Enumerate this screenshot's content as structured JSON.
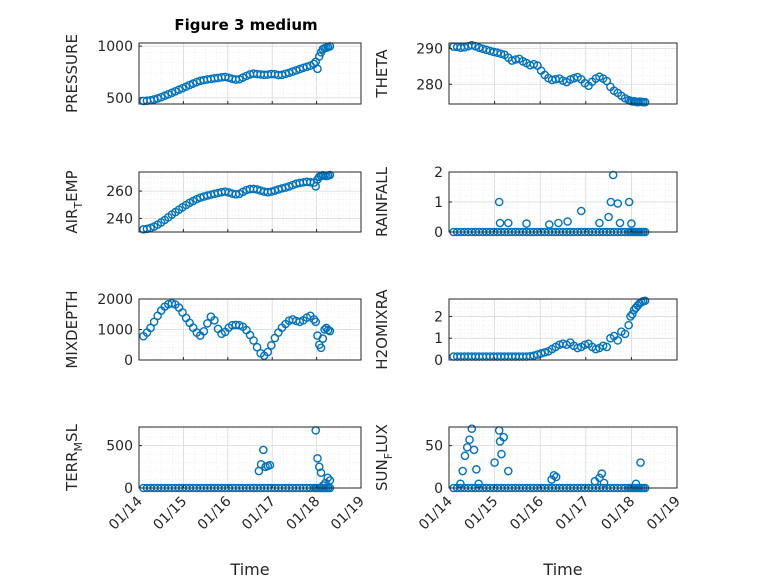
{
  "figure": {
    "title": "Figure 3 medium",
    "marker_color": "#0072bd"
  },
  "chart_data": [
    {
      "type": "scatter",
      "ylabel": "PRESSURE",
      "yticks": [
        500,
        1000
      ],
      "ylim": [
        440,
        1030
      ],
      "xlim": [
        0,
        5
      ],
      "xticks": [
        0,
        1,
        2,
        3,
        4,
        5
      ],
      "xticklabels": [
        "01/14",
        "01/15",
        "01/16",
        "01/17",
        "01/18",
        "01/19"
      ],
      "xlabel": "",
      "x": [
        0.1,
        0.18,
        0.26,
        0.34,
        0.42,
        0.5,
        0.58,
        0.66,
        0.74,
        0.82,
        0.9,
        0.98,
        1.06,
        1.14,
        1.22,
        1.3,
        1.38,
        1.46,
        1.54,
        1.62,
        1.7,
        1.78,
        1.86,
        1.94,
        2.02,
        2.1,
        2.18,
        2.26,
        2.34,
        2.42,
        2.5,
        2.58,
        2.66,
        2.74,
        2.82,
        2.9,
        2.98,
        3.06,
        3.14,
        3.22,
        3.3,
        3.38,
        3.46,
        3.54,
        3.62,
        3.7,
        3.78,
        3.86,
        3.94,
        3.98,
        4.02,
        4.06,
        4.1,
        4.14,
        4.18,
        4.22,
        4.26,
        4.3
      ],
      "y": [
        470,
        472,
        476,
        484,
        494,
        506,
        520,
        534,
        548,
        563,
        578,
        593,
        608,
        624,
        638,
        652,
        664,
        672,
        678,
        682,
        688,
        692,
        698,
        702,
        694,
        684,
        676,
        680,
        696,
        712,
        726,
        734,
        730,
        726,
        722,
        724,
        730,
        728,
        720,
        722,
        732,
        742,
        754,
        766,
        778,
        790,
        800,
        812,
        828,
        848,
        780,
        900,
        940,
        970,
        980,
        985,
        990,
        998
      ]
    },
    {
      "type": "scatter",
      "ylabel": "THETA",
      "yticks": [
        280,
        290
      ],
      "ylim": [
        274.5,
        291.5
      ],
      "xlim": [
        0,
        5
      ],
      "xticks": [
        0,
        1,
        2,
        3,
        4,
        5
      ],
      "xticklabels": [
        "01/14",
        "01/15",
        "01/16",
        "01/17",
        "01/18",
        "01/19"
      ],
      "xlabel": "",
      "x": [
        0.1,
        0.18,
        0.26,
        0.34,
        0.42,
        0.5,
        0.58,
        0.66,
        0.74,
        0.82,
        0.9,
        0.98,
        1.06,
        1.14,
        1.22,
        1.3,
        1.38,
        1.46,
        1.54,
        1.62,
        1.7,
        1.78,
        1.86,
        1.94,
        2.02,
        2.1,
        2.18,
        2.26,
        2.34,
        2.42,
        2.5,
        2.58,
        2.66,
        2.74,
        2.82,
        2.9,
        2.98,
        3.06,
        3.14,
        3.22,
        3.3,
        3.38,
        3.46,
        3.54,
        3.62,
        3.7,
        3.78,
        3.86,
        3.94,
        3.98,
        4.02,
        4.06,
        4.1,
        4.14,
        4.18,
        4.22,
        4.26,
        4.3
      ],
      "y": [
        290.5,
        290.4,
        290.2,
        290.3,
        290.6,
        290.9,
        290.6,
        290.2,
        289.9,
        289.6,
        289.3,
        289.0,
        288.8,
        288.5,
        288.2,
        287.4,
        286.6,
        286.9,
        287.1,
        286.4,
        285.9,
        285.3,
        285.6,
        285.2,
        283.8,
        282.6,
        281.7,
        281.2,
        281.4,
        281.6,
        281.0,
        280.6,
        281.3,
        281.7,
        282.0,
        281.4,
        280.3,
        279.6,
        280.7,
        281.6,
        282.1,
        281.6,
        280.9,
        279.3,
        278.2,
        277.6,
        276.8,
        276.1,
        275.6,
        275.4,
        275.2,
        275.3,
        275.1,
        275.0,
        275.2,
        275.1,
        275.0,
        275.0
      ]
    },
    {
      "type": "scatter",
      "ylabel": "AIR_TEMP",
      "yticks": [
        240,
        260
      ],
      "ylim": [
        230,
        274
      ],
      "xlim": [
        0,
        5
      ],
      "xticks": [
        0,
        1,
        2,
        3,
        4,
        5
      ],
      "xticklabels": [
        "01/14",
        "01/15",
        "01/16",
        "01/17",
        "01/18",
        "01/19"
      ],
      "xlabel": "",
      "x": [
        0.1,
        0.18,
        0.26,
        0.34,
        0.42,
        0.5,
        0.58,
        0.66,
        0.74,
        0.82,
        0.9,
        0.98,
        1.06,
        1.14,
        1.22,
        1.3,
        1.38,
        1.46,
        1.54,
        1.62,
        1.7,
        1.78,
        1.86,
        1.94,
        2.02,
        2.1,
        2.18,
        2.26,
        2.34,
        2.42,
        2.5,
        2.58,
        2.66,
        2.74,
        2.82,
        2.9,
        2.98,
        3.06,
        3.14,
        3.22,
        3.3,
        3.38,
        3.46,
        3.54,
        3.62,
        3.7,
        3.78,
        3.86,
        3.94,
        3.98,
        4.02,
        4.06,
        4.1,
        4.14,
        4.18,
        4.22,
        4.26,
        4.3
      ],
      "y": [
        232,
        232.3,
        233,
        234,
        235.4,
        237,
        238.8,
        240.8,
        242.8,
        244.6,
        246.4,
        248.1,
        249.8,
        251.4,
        252.8,
        254.1,
        255.2,
        256.0,
        256.7,
        257.4,
        258.0,
        258.6,
        259.2,
        259.6,
        259.0,
        258.2,
        257.6,
        258.0,
        259.5,
        260.8,
        261.5,
        261.6,
        261.2,
        260.4,
        259.6,
        259.2,
        259.6,
        260.4,
        261.2,
        262.0,
        262.6,
        263.4,
        264.4,
        265.4,
        266.0,
        266.4,
        266.8,
        266.5,
        266.2,
        263.5,
        268.5,
        270.5,
        271.2,
        271.6,
        271.3,
        271.0,
        271.4,
        271.8
      ]
    },
    {
      "type": "scatter",
      "ylabel": "RAINFALL",
      "yticks": [
        0,
        1,
        2
      ],
      "ylim": [
        0,
        2
      ],
      "xlim": [
        0,
        5
      ],
      "xticks": [
        0,
        1,
        2,
        3,
        4,
        5
      ],
      "xticklabels": [
        "01/14",
        "01/15",
        "01/16",
        "01/17",
        "01/18",
        "01/19"
      ],
      "xlabel": "",
      "x": [
        0.1,
        0.18,
        0.26,
        0.34,
        0.42,
        0.5,
        0.58,
        0.66,
        0.74,
        0.82,
        0.9,
        0.98,
        1.06,
        1.14,
        1.22,
        1.3,
        1.38,
        1.46,
        1.54,
        1.62,
        1.7,
        1.78,
        1.86,
        1.94,
        2.02,
        2.1,
        2.18,
        2.26,
        2.34,
        2.42,
        2.5,
        2.58,
        2.66,
        2.74,
        2.82,
        2.9,
        2.98,
        3.06,
        3.14,
        3.22,
        3.3,
        3.38,
        3.46,
        3.54,
        3.62,
        3.7,
        3.78,
        3.86,
        3.94,
        3.98,
        4.02,
        4.06,
        4.1,
        4.14,
        4.18,
        4.22,
        4.26,
        4.3,
        1.1,
        1.12,
        1.3,
        1.7,
        2.2,
        2.4,
        2.6,
        2.9,
        3.3,
        3.5,
        3.55,
        3.6,
        3.7,
        3.75,
        3.95,
        4.0
      ],
      "y": [
        0,
        0,
        0,
        0,
        0,
        0,
        0,
        0,
        0,
        0,
        0,
        0,
        0,
        0,
        0,
        0,
        0,
        0,
        0,
        0,
        0,
        0,
        0,
        0,
        0,
        0,
        0,
        0,
        0,
        0,
        0,
        0,
        0,
        0,
        0,
        0,
        0,
        0,
        0,
        0,
        0,
        0,
        0,
        0,
        0,
        0,
        0,
        0,
        0,
        0,
        0,
        0,
        0,
        0,
        0,
        0,
        0,
        0,
        1.0,
        0.3,
        0.3,
        0.28,
        0.25,
        0.3,
        0.35,
        0.7,
        0.3,
        0.5,
        1.0,
        1.9,
        0.95,
        0.3,
        1.0,
        0.28
      ]
    },
    {
      "type": "scatter",
      "ylabel": "MIXDEPTH",
      "yticks": [
        0,
        1000,
        2000
      ],
      "ylim": [
        0,
        2000
      ],
      "xlim": [
        0,
        5
      ],
      "xticks": [
        0,
        1,
        2,
        3,
        4,
        5
      ],
      "xticklabels": [
        "01/14",
        "01/15",
        "01/16",
        "01/17",
        "01/18",
        "01/19"
      ],
      "xlabel": "",
      "x": [
        0.1,
        0.18,
        0.26,
        0.34,
        0.42,
        0.5,
        0.58,
        0.66,
        0.74,
        0.82,
        0.9,
        0.98,
        1.06,
        1.14,
        1.22,
        1.3,
        1.38,
        1.46,
        1.54,
        1.62,
        1.7,
        1.78,
        1.86,
        1.94,
        2.02,
        2.1,
        2.18,
        2.26,
        2.34,
        2.42,
        2.5,
        2.58,
        2.66,
        2.74,
        2.82,
        2.9,
        2.98,
        3.06,
        3.14,
        3.22,
        3.3,
        3.38,
        3.46,
        3.54,
        3.62,
        3.7,
        3.78,
        3.86,
        3.94,
        3.98,
        4.02,
        4.06,
        4.1,
        4.14,
        4.18,
        4.22,
        4.26,
        4.3
      ],
      "y": [
        780,
        900,
        1050,
        1250,
        1450,
        1620,
        1750,
        1830,
        1860,
        1820,
        1720,
        1560,
        1380,
        1220,
        1060,
        900,
        800,
        940,
        1200,
        1420,
        1300,
        1020,
        860,
        920,
        1060,
        1140,
        1150,
        1140,
        1090,
        980,
        820,
        640,
        420,
        220,
        140,
        260,
        480,
        720,
        900,
        1060,
        1180,
        1290,
        1330,
        1280,
        1250,
        1300,
        1390,
        1450,
        1330,
        1250,
        800,
        500,
        400,
        700,
        1000,
        1050,
        980,
        950
      ]
    },
    {
      "type": "scatter",
      "ylabel": "H2OMIXRA",
      "yticks": [
        0,
        1,
        2
      ],
      "ylim": [
        0,
        2.8
      ],
      "xlim": [
        0,
        5
      ],
      "xticks": [
        0,
        1,
        2,
        3,
        4,
        5
      ],
      "xticklabels": [
        "01/14",
        "01/15",
        "01/16",
        "01/17",
        "01/18",
        "01/19"
      ],
      "xlabel": "",
      "x": [
        0.1,
        0.18,
        0.26,
        0.34,
        0.42,
        0.5,
        0.58,
        0.66,
        0.74,
        0.82,
        0.9,
        0.98,
        1.06,
        1.14,
        1.22,
        1.3,
        1.38,
        1.46,
        1.54,
        1.62,
        1.7,
        1.78,
        1.86,
        1.94,
        2.02,
        2.1,
        2.18,
        2.26,
        2.34,
        2.42,
        2.5,
        2.58,
        2.66,
        2.74,
        2.82,
        2.9,
        2.98,
        3.06,
        3.14,
        3.22,
        3.3,
        3.38,
        3.46,
        3.54,
        3.62,
        3.7,
        3.78,
        3.86,
        3.94,
        3.98,
        4.02,
        4.06,
        4.1,
        4.14,
        4.18,
        4.22,
        4.26,
        4.3
      ],
      "y": [
        0.16,
        0.16,
        0.16,
        0.16,
        0.16,
        0.16,
        0.16,
        0.16,
        0.16,
        0.16,
        0.16,
        0.16,
        0.16,
        0.16,
        0.16,
        0.16,
        0.16,
        0.16,
        0.16,
        0.16,
        0.16,
        0.17,
        0.2,
        0.25,
        0.3,
        0.35,
        0.4,
        0.5,
        0.6,
        0.7,
        0.75,
        0.7,
        0.8,
        0.65,
        0.55,
        0.6,
        0.7,
        0.75,
        0.6,
        0.5,
        0.55,
        0.65,
        0.6,
        1.0,
        1.1,
        0.9,
        1.3,
        1.2,
        1.6,
        2.0,
        2.1,
        2.3,
        2.4,
        2.5,
        2.6,
        2.65,
        2.7,
        2.72
      ]
    },
    {
      "type": "scatter",
      "ylabel": "TERR_MSL",
      "yticks": [
        0,
        500
      ],
      "ylim": [
        0,
        720
      ],
      "xlim": [
        0,
        5
      ],
      "xticks": [
        0,
        1,
        2,
        3,
        4,
        5
      ],
      "xticklabels": [
        "01/14",
        "01/15",
        "01/16",
        "01/17",
        "01/18",
        "01/19"
      ],
      "xlabel": "Time",
      "x": [
        0.1,
        0.18,
        0.26,
        0.34,
        0.42,
        0.5,
        0.58,
        0.66,
        0.74,
        0.82,
        0.9,
        0.98,
        1.06,
        1.14,
        1.22,
        1.3,
        1.38,
        1.46,
        1.54,
        1.62,
        1.7,
        1.78,
        1.86,
        1.94,
        2.02,
        2.1,
        2.18,
        2.26,
        2.34,
        2.42,
        2.5,
        2.58,
        2.66,
        2.74,
        2.82,
        2.9,
        2.98,
        3.06,
        3.14,
        3.22,
        3.3,
        3.38,
        3.46,
        3.54,
        3.62,
        3.7,
        3.78,
        3.86,
        3.94,
        3.98,
        4.02,
        4.06,
        4.1,
        4.14,
        4.18,
        4.22,
        4.26,
        4.3,
        2.7,
        2.75,
        2.8,
        2.85,
        2.9,
        2.95,
        3.98,
        4.02,
        4.06,
        4.1,
        4.15,
        4.2,
        4.25,
        4.3
      ],
      "y": [
        0,
        0,
        0,
        0,
        0,
        0,
        0,
        0,
        0,
        0,
        0,
        0,
        0,
        0,
        0,
        0,
        0,
        0,
        0,
        0,
        0,
        0,
        0,
        0,
        0,
        0,
        0,
        0,
        0,
        0,
        0,
        0,
        0,
        0,
        0,
        0,
        0,
        0,
        0,
        0,
        0,
        0,
        0,
        0,
        0,
        0,
        0,
        0,
        0,
        0,
        0,
        0,
        0,
        0,
        0,
        0,
        0,
        0,
        200,
        280,
        450,
        250,
        260,
        270,
        680,
        350,
        250,
        180,
        30,
        60,
        120,
        90
      ]
    },
    {
      "type": "scatter",
      "ylabel": "SUN_FLUX",
      "yticks": [
        0,
        50
      ],
      "ylim": [
        0,
        72
      ],
      "xlim": [
        0,
        5
      ],
      "xticks": [
        0,
        1,
        2,
        3,
        4,
        5
      ],
      "xticklabels": [
        "01/14",
        "01/15",
        "01/16",
        "01/17",
        "01/18",
        "01/19"
      ],
      "xlabel": "Time",
      "x": [
        0.1,
        0.18,
        0.26,
        0.34,
        0.42,
        0.5,
        0.58,
        0.66,
        0.74,
        0.82,
        0.9,
        0.98,
        1.06,
        1.14,
        1.22,
        1.3,
        1.38,
        1.46,
        1.54,
        1.62,
        1.7,
        1.78,
        1.86,
        1.94,
        2.02,
        2.1,
        2.18,
        2.26,
        2.34,
        2.42,
        2.5,
        2.58,
        2.66,
        2.74,
        2.82,
        2.9,
        2.98,
        3.06,
        3.14,
        3.22,
        3.3,
        3.38,
        3.46,
        3.54,
        3.62,
        3.7,
        3.78,
        3.86,
        3.94,
        3.98,
        4.02,
        4.06,
        4.1,
        4.14,
        4.18,
        4.22,
        4.26,
        4.3,
        0.25,
        0.3,
        0.35,
        0.4,
        0.45,
        0.5,
        0.55,
        0.6,
        0.65,
        1.0,
        1.1,
        1.12,
        1.15,
        1.2,
        1.3,
        2.25,
        2.3,
        2.35,
        3.2,
        3.3,
        3.35,
        3.4,
        4.1,
        4.2
      ],
      "y": [
        0,
        0,
        0,
        0,
        0,
        0,
        0,
        0,
        0,
        0,
        0,
        0,
        0,
        0,
        0,
        0,
        0,
        0,
        0,
        0,
        0,
        0,
        0,
        0,
        0,
        0,
        0,
        0,
        0,
        0,
        0,
        0,
        0,
        0,
        0,
        0,
        0,
        0,
        0,
        0,
        0,
        0,
        0,
        0,
        0,
        0,
        0,
        0,
        0,
        0,
        0,
        0,
        0,
        0,
        0,
        0,
        0,
        0,
        5,
        20,
        38,
        48,
        57,
        70,
        45,
        22,
        5,
        30,
        68,
        55,
        40,
        60,
        20,
        10,
        15,
        13,
        8,
        12,
        17,
        6,
        5,
        30
      ]
    }
  ]
}
